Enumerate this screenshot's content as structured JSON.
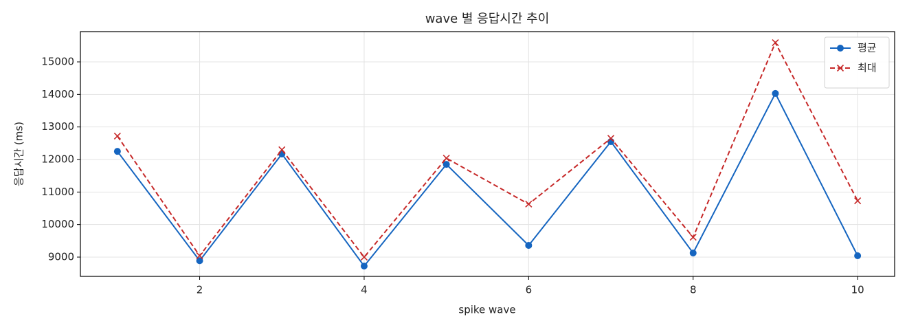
{
  "chart_data": {
    "type": "line",
    "title": "wave 별 응답시간 추이",
    "x_label": "spike wave",
    "y_label": "응답시간 (ms)",
    "x": [
      1,
      2,
      3,
      4,
      5,
      6,
      7,
      8,
      9,
      10
    ],
    "series": [
      {
        "name": "평균",
        "color": "#1565c0",
        "marker": "circle",
        "dash": "solid",
        "values": [
          12250,
          8890,
          12170,
          8725,
          11850,
          9360,
          12550,
          9127,
          14030,
          9042
        ]
      },
      {
        "name": "최대",
        "color": "#c62828",
        "marker": "x",
        "dash": "dashed",
        "values": [
          12720,
          9042,
          12300,
          9000,
          12040,
          10630,
          12650,
          9610,
          15590,
          10730
        ]
      }
    ],
    "xlim": [
      0.55,
      10.45
    ],
    "xticks": [
      2,
      4,
      6,
      8,
      10
    ],
    "ylim": [
      8408,
      15930
    ],
    "yticks": [
      9000,
      10000,
      11000,
      12000,
      13000,
      14000,
      15000
    ],
    "grid": true,
    "legend": "upper-right"
  }
}
